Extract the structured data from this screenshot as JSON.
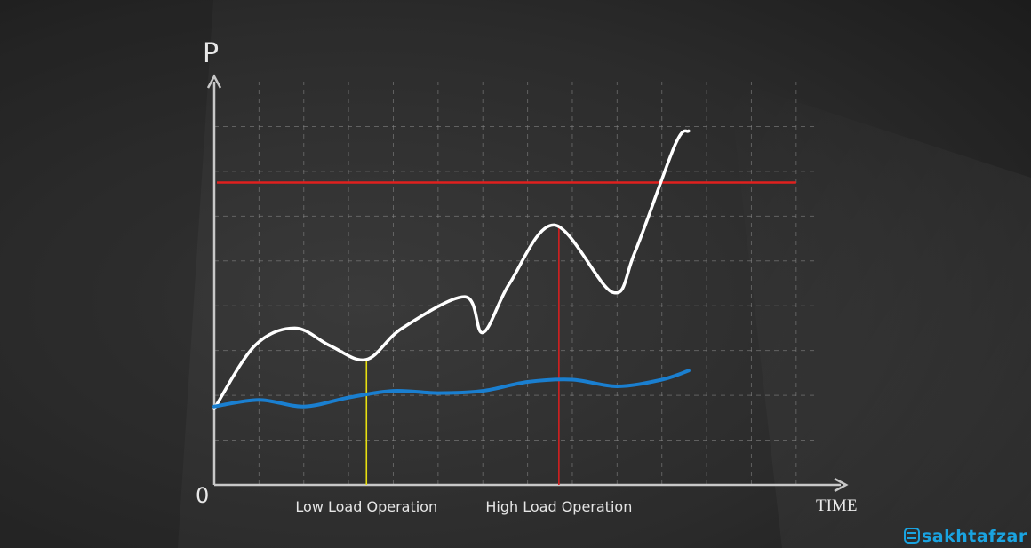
{
  "chart_data": {
    "type": "line",
    "title": "",
    "ylabel": "P",
    "xlabel": "TIME",
    "origin_label": "0",
    "grid": true,
    "xlim": [
      0,
      13.5
    ],
    "ylim": [
      0,
      9
    ],
    "series": [
      {
        "color": "#ffffff",
        "x": [
          0,
          0.9,
          1.8,
          2.6,
          3.4,
          4.2,
          5.6,
          6.0,
          6.6,
          7.6,
          8.9,
          9.4,
          10.3,
          10.6
        ],
        "y": [
          1.7,
          3.1,
          3.5,
          3.1,
          2.8,
          3.5,
          4.2,
          3.4,
          4.5,
          5.8,
          4.3,
          5.2,
          7.6,
          7.9
        ]
      },
      {
        "color": "#1a7fd0",
        "x": [
          0,
          1,
          2,
          3,
          4,
          5,
          6,
          7,
          8,
          9,
          10,
          10.6
        ],
        "y": [
          1.75,
          1.9,
          1.75,
          1.95,
          2.1,
          2.05,
          2.1,
          2.3,
          2.35,
          2.2,
          2.35,
          2.55
        ]
      }
    ],
    "threshold": {
      "y": 6.75,
      "color": "#e0201e"
    },
    "annotations": [
      {
        "label": "Low Load Operation",
        "x": 3.4,
        "y": 2.8,
        "color": "#e8e010"
      },
      {
        "label": "High Load Operation",
        "x": 7.7,
        "y": 5.75,
        "color": "#d42020"
      }
    ]
  },
  "watermark": {
    "text": "sakhtafzar",
    "color": "#1aa3e0"
  }
}
